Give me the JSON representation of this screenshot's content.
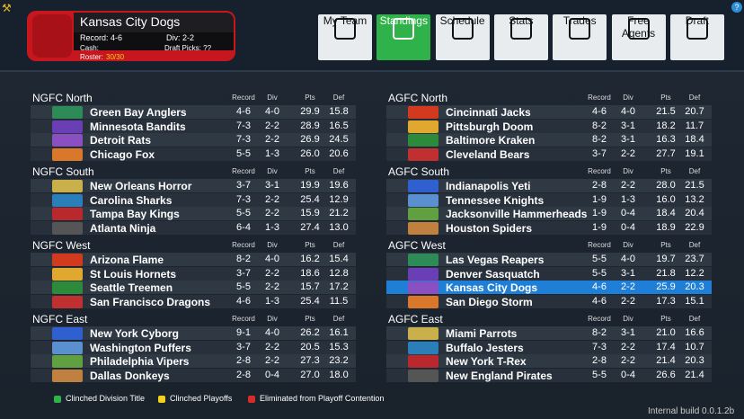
{
  "header": {
    "team_name": "Kansas City Dogs",
    "record": "Record: 4-6",
    "division": "Div: 2-2",
    "cash": "Cash:",
    "draft_picks": "Draft Picks: ??",
    "roster_label": "Roster:",
    "roster_value": "30/30"
  },
  "nav": [
    "My Team",
    "Standings",
    "Schedule",
    "Stats",
    "Trades",
    "Free Agents",
    "Draft"
  ],
  "active_tab": 1,
  "columns": [
    "Record",
    "Div",
    "Pts",
    "Def"
  ],
  "conferences": [
    {
      "divisions": [
        {
          "name": "NGFC North",
          "teams": [
            [
              "Green Bay Anglers",
              "4-6",
              "4-0",
              "29.9",
              "15.8"
            ],
            [
              "Minnesota Bandits",
              "7-3",
              "2-2",
              "28.9",
              "16.5"
            ],
            [
              "Detroit Rats",
              "7-3",
              "2-2",
              "26.9",
              "24.5"
            ],
            [
              "Chicago Fox",
              "5-5",
              "1-3",
              "26.0",
              "20.6"
            ]
          ]
        },
        {
          "name": "NGFC South",
          "teams": [
            [
              "New Orleans Horror",
              "3-7",
              "3-1",
              "19.9",
              "19.6"
            ],
            [
              "Carolina Sharks",
              "7-3",
              "2-2",
              "25.4",
              "12.9"
            ],
            [
              "Tampa Bay Kings",
              "5-5",
              "2-2",
              "15.9",
              "21.2"
            ],
            [
              "Atlanta Ninja",
              "6-4",
              "1-3",
              "27.4",
              "13.0"
            ]
          ]
        },
        {
          "name": "NGFC West",
          "teams": [
            [
              "Arizona Flame",
              "8-2",
              "4-0",
              "16.2",
              "15.4"
            ],
            [
              "St Louis Hornets",
              "3-7",
              "2-2",
              "18.6",
              "12.8"
            ],
            [
              "Seattle Treemen",
              "5-5",
              "2-2",
              "15.7",
              "17.2"
            ],
            [
              "San Francisco Dragons",
              "4-6",
              "1-3",
              "25.4",
              "11.5"
            ]
          ]
        },
        {
          "name": "NGFC East",
          "teams": [
            [
              "New York Cyborg",
              "9-1",
              "4-0",
              "26.2",
              "16.1"
            ],
            [
              "Washington Puffers",
              "3-7",
              "2-2",
              "20.5",
              "15.3"
            ],
            [
              "Philadelphia Vipers",
              "2-8",
              "2-2",
              "27.3",
              "23.2"
            ],
            [
              "Dallas Donkeys",
              "2-8",
              "0-4",
              "27.0",
              "18.0"
            ]
          ]
        }
      ]
    },
    {
      "divisions": [
        {
          "name": "AGFC North",
          "teams": [
            [
              "Cincinnati Jacks",
              "4-6",
              "4-0",
              "21.5",
              "20.7"
            ],
            [
              "Pittsburgh Doom",
              "8-2",
              "3-1",
              "18.2",
              "11.7"
            ],
            [
              "Baltimore Kraken",
              "8-2",
              "3-1",
              "16.3",
              "18.4"
            ],
            [
              "Cleveland Bears",
              "3-7",
              "2-2",
              "27.7",
              "19.1"
            ]
          ]
        },
        {
          "name": "AGFC South",
          "teams": [
            [
              "Indianapolis Yeti",
              "2-8",
              "2-2",
              "28.0",
              "21.5"
            ],
            [
              "Tennessee Knights",
              "1-9",
              "1-3",
              "16.0",
              "13.2"
            ],
            [
              "Jacksonville Hammerheads",
              "1-9",
              "0-4",
              "18.4",
              "20.4"
            ],
            [
              "Houston Spiders",
              "1-9",
              "0-4",
              "18.9",
              "22.9"
            ]
          ]
        },
        {
          "name": "AGFC West",
          "teams": [
            [
              "Las Vegas Reapers",
              "5-5",
              "4-0",
              "19.7",
              "23.7"
            ],
            [
              "Denver Sasquatch",
              "5-5",
              "3-1",
              "21.8",
              "12.2"
            ],
            [
              "Kansas City Dogs",
              "4-6",
              "2-2",
              "25.9",
              "20.3"
            ],
            [
              "San Diego Storm",
              "4-6",
              "2-2",
              "17.3",
              "15.1"
            ]
          ]
        },
        {
          "name": "AGFC East",
          "teams": [
            [
              "Miami Parrots",
              "8-2",
              "3-1",
              "21.0",
              "16.6"
            ],
            [
              "Buffalo Jesters",
              "7-3",
              "2-2",
              "17.4",
              "10.7"
            ],
            [
              "New York T-Rex",
              "2-8",
              "2-2",
              "21.4",
              "20.3"
            ],
            [
              "New England Pirates",
              "5-5",
              "0-4",
              "26.6",
              "21.4"
            ]
          ]
        }
      ]
    }
  ],
  "legend": [
    "Clinched Division Title",
    "Clinched Playoffs",
    "Eliminated from Playoff Contention"
  ],
  "build": "Internal build 0.0.1.2b"
}
